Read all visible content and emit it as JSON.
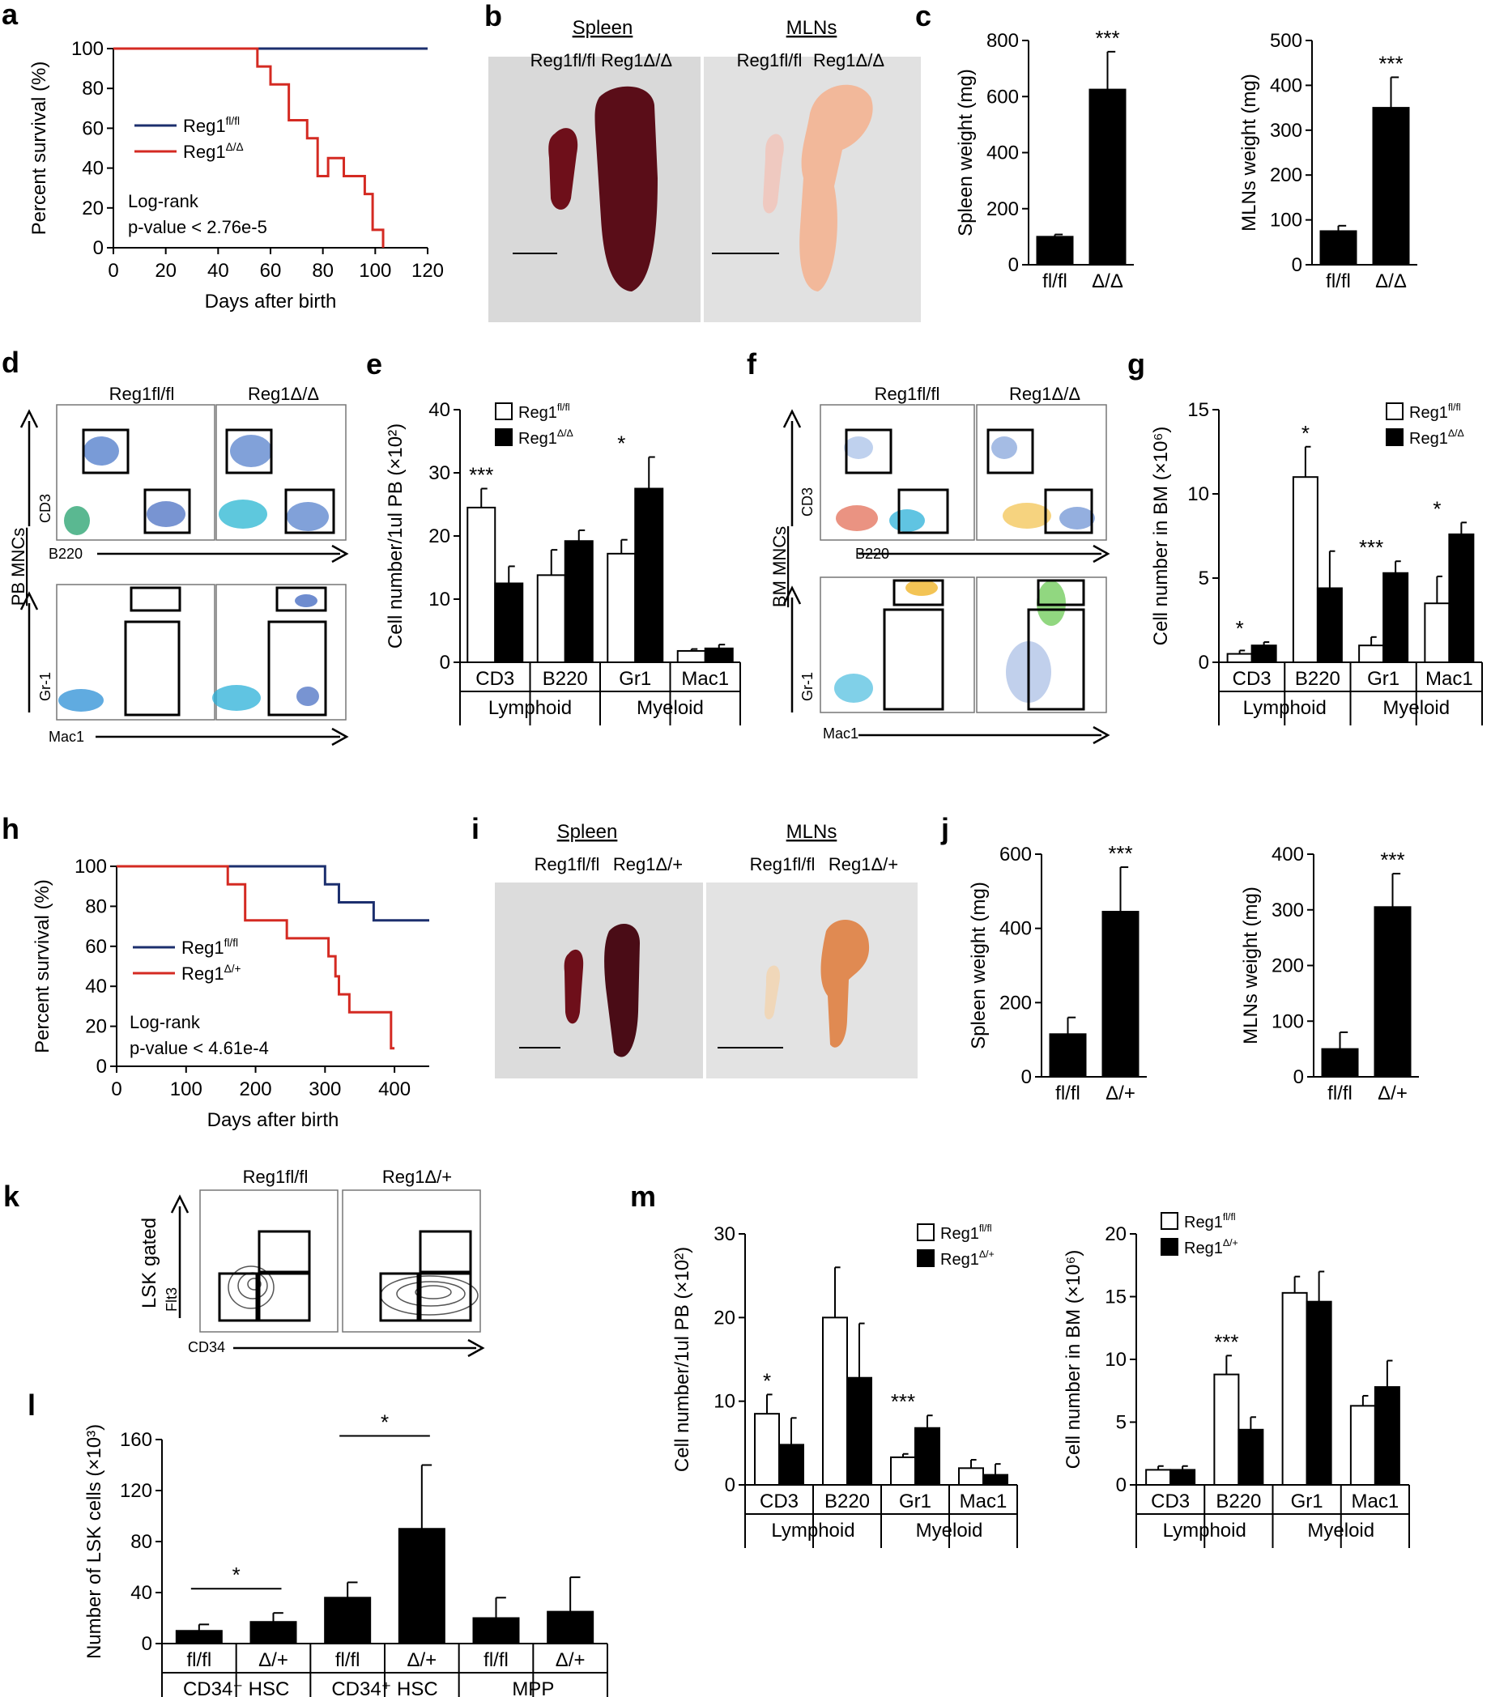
{
  "chart_data": [
    {
      "id": "a",
      "type": "line",
      "title": "",
      "xlabel": "Days after birth",
      "ylabel": "Percent survival (%)",
      "xlim": [
        0,
        120
      ],
      "ylim": [
        0,
        100
      ],
      "xticks": [
        0,
        20,
        40,
        60,
        80,
        100,
        120
      ],
      "yticks": [
        0,
        20,
        40,
        60,
        80,
        100
      ],
      "series": [
        {
          "name": "Reg1fl/fl",
          "color": "#1c2f6e",
          "x": [
            0,
            120
          ],
          "y": [
            100,
            100
          ]
        },
        {
          "name": "Reg1Δ/Δ",
          "color": "#d42a22",
          "x": [
            0,
            55,
            55,
            60,
            60,
            67,
            67,
            74,
            74,
            78,
            78,
            82,
            82,
            88,
            88,
            96,
            96,
            99,
            99,
            103,
            103
          ],
          "y": [
            100,
            100,
            91,
            91,
            82,
            82,
            64,
            64,
            55,
            55,
            36,
            36,
            45,
            45,
            36,
            36,
            27,
            27,
            9,
            9,
            0
          ]
        }
      ],
      "legend": [
        "Reg1fl/fl",
        "Reg1Δ/Δ"
      ],
      "annotation": [
        "Log-rank",
        "p-value < 2.76e-5"
      ]
    },
    {
      "id": "c1",
      "type": "bar",
      "ylabel": "Spleen weight (mg)",
      "ylim": [
        0,
        800
      ],
      "yticks": [
        0,
        200,
        400,
        600,
        800
      ],
      "categories": [
        "fl/fl",
        "Δ/Δ"
      ],
      "values": [
        100,
        625
      ],
      "errors": [
        8,
        135
      ],
      "significance": [
        "",
        "***"
      ]
    },
    {
      "id": "c2",
      "type": "bar",
      "ylabel": "MLNs weight (mg)",
      "ylim": [
        0,
        500
      ],
      "yticks": [
        0,
        100,
        200,
        300,
        400,
        500
      ],
      "categories": [
        "fl/fl",
        "Δ/Δ"
      ],
      "values": [
        75,
        350
      ],
      "errors": [
        12,
        68
      ],
      "significance": [
        "",
        "***"
      ]
    },
    {
      "id": "e",
      "type": "bar",
      "ylabel": "Cell number/1ul PB (×10²)",
      "ylim": [
        0,
        40
      ],
      "yticks": [
        0,
        10,
        20,
        30,
        40
      ],
      "categories": [
        "CD3",
        "B220",
        "Gr1",
        "Mac1"
      ],
      "groups": [
        {
          "label": "Lymphoid",
          "span": [
            0,
            1
          ]
        },
        {
          "label": "Myeloid",
          "span": [
            2,
            3
          ]
        }
      ],
      "series": [
        {
          "name": "Reg1fl/fl",
          "values": [
            24.5,
            13.8,
            17.2,
            1.8
          ],
          "errors": [
            3.0,
            4.0,
            2.2,
            0.3
          ]
        },
        {
          "name": "Reg1Δ/Δ",
          "values": [
            12.5,
            19.2,
            27.5,
            2.2
          ],
          "errors": [
            2.7,
            1.7,
            5.0,
            0.6
          ]
        }
      ],
      "significance": [
        "***",
        "",
        "*",
        ""
      ]
    },
    {
      "id": "g",
      "type": "bar",
      "ylabel": "Cell number in BM (×10⁶)",
      "ylim": [
        0,
        15
      ],
      "yticks": [
        0,
        5,
        10,
        15
      ],
      "categories": [
        "CD3",
        "B220",
        "Gr1",
        "Mac1"
      ],
      "groups": [
        {
          "label": "Lymphoid",
          "span": [
            0,
            1
          ]
        },
        {
          "label": "Myeloid",
          "span": [
            2,
            3
          ]
        }
      ],
      "series": [
        {
          "name": "Reg1fl/fl",
          "values": [
            0.5,
            11.0,
            1.0,
            3.5
          ],
          "errors": [
            0.2,
            1.8,
            0.5,
            1.6
          ]
        },
        {
          "name": "Reg1Δ/Δ",
          "values": [
            1.0,
            4.4,
            5.3,
            7.6
          ],
          "errors": [
            0.2,
            2.2,
            0.7,
            0.7
          ]
        }
      ],
      "significance": [
        "*",
        "*",
        "***",
        "*"
      ]
    },
    {
      "id": "h",
      "type": "line",
      "xlabel": "Days after birth",
      "ylabel": "Percent survival (%)",
      "xlim": [
        0,
        450
      ],
      "ylim": [
        0,
        100
      ],
      "xticks": [
        0,
        100,
        200,
        300,
        400
      ],
      "yticks": [
        0,
        20,
        40,
        60,
        80,
        100
      ],
      "series": [
        {
          "name": "Reg1fl/fl",
          "color": "#1c2f6e",
          "x": [
            0,
            300,
            300,
            320,
            320,
            370,
            370,
            450
          ],
          "y": [
            100,
            100,
            91,
            91,
            82,
            82,
            73,
            73
          ]
        },
        {
          "name": "Reg1Δ/+",
          "color": "#d42a22",
          "x": [
            0,
            160,
            160,
            185,
            185,
            245,
            245,
            305,
            305,
            315,
            315,
            320,
            320,
            335,
            335,
            395,
            395,
            400
          ],
          "y": [
            100,
            100,
            91,
            91,
            73,
            73,
            64,
            64,
            55,
            55,
            45,
            45,
            36,
            36,
            27,
            27,
            9,
            9
          ]
        }
      ],
      "legend": [
        "Reg1fl/fl",
        "Reg1Δ/+"
      ],
      "annotation": [
        "Log-rank",
        "p-value < 4.61e-4"
      ]
    },
    {
      "id": "j1",
      "type": "bar",
      "ylabel": "Spleen weight (mg)",
      "ylim": [
        0,
        600
      ],
      "yticks": [
        0,
        200,
        400,
        600
      ],
      "categories": [
        "fl/fl",
        "Δ/+"
      ],
      "values": [
        115,
        445
      ],
      "errors": [
        45,
        120
      ],
      "significance": [
        "",
        "***"
      ]
    },
    {
      "id": "j2",
      "type": "bar",
      "ylabel": "MLNs weight (mg)",
      "ylim": [
        0,
        400
      ],
      "yticks": [
        0,
        100,
        200,
        300,
        400
      ],
      "categories": [
        "fl/fl",
        "Δ/+"
      ],
      "values": [
        50,
        305
      ],
      "errors": [
        30,
        60
      ],
      "significance": [
        "",
        "***"
      ]
    },
    {
      "id": "l",
      "type": "bar",
      "ylabel": "Number of LSK cells (×10³)",
      "ylim": [
        0,
        160
      ],
      "yticks": [
        0,
        40,
        80,
        120,
        160
      ],
      "categories": [
        "fl/fl",
        "Δ/+",
        "fl/fl",
        "Δ/+",
        "fl/fl",
        "Δ/+"
      ],
      "groups": [
        {
          "label": "CD34⁻ HSC",
          "span": [
            0,
            1
          ]
        },
        {
          "label": "CD34⁺ HSC",
          "span": [
            2,
            3
          ]
        },
        {
          "label": "MPP",
          "span": [
            4,
            5
          ]
        }
      ],
      "values": [
        10,
        17,
        36,
        90,
        20,
        25
      ],
      "errors": [
        5,
        7,
        12,
        50,
        16,
        27
      ],
      "significance_pairs": [
        {
          "between": [
            0,
            1
          ],
          "label": "*"
        },
        {
          "between": [
            2,
            3
          ],
          "label": "*"
        }
      ]
    },
    {
      "id": "m1",
      "type": "bar",
      "ylabel": "Cell number/1ul PB (×10²)",
      "ylim": [
        0,
        30
      ],
      "yticks": [
        0,
        10,
        20,
        30
      ],
      "categories": [
        "CD3",
        "B220",
        "Gr1",
        "Mac1"
      ],
      "groups": [
        {
          "label": "Lymphoid",
          "span": [
            0,
            1
          ]
        },
        {
          "label": "Myeloid",
          "span": [
            2,
            3
          ]
        }
      ],
      "series": [
        {
          "name": "Reg1fl/fl",
          "values": [
            8.5,
            20.0,
            3.3,
            2.0
          ],
          "errors": [
            2.3,
            6.0,
            0.4,
            1.0
          ]
        },
        {
          "name": "Reg1Δ/+",
          "values": [
            4.8,
            12.8,
            6.8,
            1.2
          ],
          "errors": [
            3.2,
            6.5,
            1.5,
            1.3
          ]
        }
      ],
      "significance": [
        "*",
        "",
        "***",
        ""
      ]
    },
    {
      "id": "m2",
      "type": "bar",
      "ylabel": "Cell number in BM (×10⁶)",
      "ylim": [
        0,
        20
      ],
      "yticks": [
        0,
        5,
        10,
        15,
        20
      ],
      "categories": [
        "CD3",
        "B220",
        "Gr1",
        "Mac1"
      ],
      "groups": [
        {
          "label": "Lymphoid",
          "span": [
            0,
            1
          ]
        },
        {
          "label": "Myeloid",
          "span": [
            2,
            3
          ]
        }
      ],
      "series": [
        {
          "name": "Reg1fl/fl",
          "values": [
            1.2,
            8.8,
            15.3,
            6.3
          ],
          "errors": [
            0.3,
            1.5,
            1.3,
            0.8
          ]
        },
        {
          "name": "Reg1Δ/+",
          "values": [
            1.2,
            4.4,
            14.6,
            7.8
          ],
          "errors": [
            0.3,
            1.0,
            2.4,
            2.1
          ]
        }
      ],
      "significance": [
        "",
        "***",
        "",
        ""
      ]
    }
  ],
  "panels": {
    "labels": [
      "a",
      "b",
      "c",
      "d",
      "e",
      "f",
      "g",
      "h",
      "i",
      "j",
      "k",
      "l",
      "m"
    ],
    "b": {
      "spleen": "Spleen",
      "mlns": "MLNs",
      "left": "Reg1fl/fl",
      "right": "Reg1Δ/Δ"
    },
    "i": {
      "spleen": "Spleen",
      "mlns": "MLNs",
      "left": "Reg1fl/fl",
      "right": "Reg1Δ/+"
    },
    "d": {
      "side": "PB MNCs",
      "top_y": "CD3",
      "top_x": "B220",
      "bottom_y": "Gr-1",
      "bottom_x": "Mac1",
      "left": "Reg1fl/fl",
      "right": "Reg1Δ/Δ"
    },
    "f": {
      "side": "BM MNCs",
      "top_y": "CD3",
      "top_x": "B220",
      "bottom_y": "Gr-1",
      "bottom_x": "Mac1",
      "left": "Reg1fl/fl",
      "right": "Reg1Δ/Δ"
    },
    "k": {
      "side": "LSK gated",
      "y": "Flt3",
      "x": "CD34",
      "left": "Reg1fl/fl",
      "right": "Reg1Δ/+"
    }
  },
  "colors": {
    "wt_line": "#1c2f6e",
    "ko_line": "#d42a22",
    "bar_dark": "#000000",
    "bar_light": "#ffffff",
    "spleen": "#6e0f1a",
    "mlns_ko": "#f2b89a",
    "mlns_wt": "#efc9c0"
  }
}
